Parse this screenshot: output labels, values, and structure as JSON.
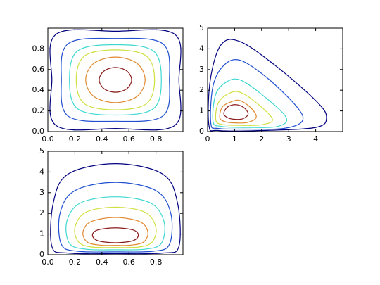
{
  "chart_data": [
    {
      "type": "contour",
      "xlim": [
        0,
        1
      ],
      "ylim": [
        0,
        1
      ],
      "xticks": [
        {
          "value": 0,
          "label": "0.0"
        },
        0.2,
        0.4,
        0.6,
        0.8
      ],
      "yticks": [
        {
          "value": 0,
          "label": "0.0"
        },
        0.2,
        0.4,
        0.6,
        0.8
      ],
      "series": [
        {
          "color": "#00007f",
          "x": [
            0.97,
            0.94,
            0.5,
            0.06,
            0.03,
            0.06,
            0.5,
            0.94
          ],
          "y": [
            0.5,
            0.94,
            0.97,
            0.94,
            0.5,
            0.06,
            0.03,
            0.06
          ]
        },
        {
          "color": "#1f4fd0",
          "x": [
            0.9,
            0.85,
            0.5,
            0.15,
            0.1,
            0.15,
            0.5,
            0.85
          ],
          "y": [
            0.5,
            0.85,
            0.9,
            0.85,
            0.5,
            0.15,
            0.1,
            0.15
          ]
        },
        {
          "color": "#3fd8d0",
          "x": [
            0.84,
            0.78,
            0.5,
            0.22,
            0.16,
            0.22,
            0.5,
            0.78
          ],
          "y": [
            0.5,
            0.78,
            0.84,
            0.78,
            0.5,
            0.22,
            0.16,
            0.22
          ]
        },
        {
          "color": "#d0e040",
          "x": [
            0.79,
            0.73,
            0.5,
            0.27,
            0.21,
            0.27,
            0.5,
            0.73
          ],
          "y": [
            0.5,
            0.73,
            0.79,
            0.73,
            0.5,
            0.27,
            0.21,
            0.27
          ]
        },
        {
          "color": "#e08a30",
          "x": [
            0.72,
            0.66,
            0.5,
            0.34,
            0.28,
            0.34,
            0.5,
            0.66
          ],
          "y": [
            0.5,
            0.66,
            0.72,
            0.66,
            0.5,
            0.34,
            0.28,
            0.34
          ]
        },
        {
          "color": "#8b1a1a",
          "x": [
            0.62,
            0.585,
            0.5,
            0.415,
            0.38,
            0.415,
            0.5,
            0.585
          ],
          "y": [
            0.5,
            0.585,
            0.62,
            0.585,
            0.5,
            0.415,
            0.38,
            0.415
          ]
        }
      ]
    },
    {
      "type": "contour",
      "xlim": [
        0,
        5
      ],
      "ylim": [
        0,
        5
      ],
      "xticks": [
        0,
        1,
        2,
        3,
        4
      ],
      "yticks": [
        0,
        1,
        2,
        3,
        4,
        5
      ],
      "series": [
        {
          "color": "#00007f",
          "x": [
            0.05,
            0.1,
            0.5,
            1.2,
            2.5,
            4.0,
            4.4,
            4.0,
            2.0,
            0.4
          ],
          "y": [
            0.3,
            2.5,
            4.2,
            4.35,
            3.2,
            1.5,
            0.7,
            0.2,
            0.05,
            0.05
          ]
        },
        {
          "color": "#1f4fd0",
          "x": [
            0.12,
            0.2,
            0.6,
            1.2,
            2.2,
            3.3,
            3.5,
            2.8,
            1.5,
            0.4
          ],
          "y": [
            0.4,
            2.2,
            3.2,
            3.45,
            2.6,
            1.2,
            0.5,
            0.15,
            0.12,
            0.15
          ]
        },
        {
          "color": "#3fd8d0",
          "x": [
            0.2,
            0.3,
            0.7,
            1.2,
            2.0,
            2.9,
            2.6,
            1.5,
            0.5
          ],
          "y": [
            0.5,
            1.8,
            2.4,
            2.5,
            1.8,
            0.7,
            0.25,
            0.2,
            0.25
          ]
        },
        {
          "color": "#d0e040",
          "x": [
            0.3,
            0.4,
            0.8,
            1.2,
            1.8,
            2.4,
            2.0,
            1.2,
            0.5
          ],
          "y": [
            0.6,
            1.4,
            1.85,
            1.9,
            1.4,
            0.6,
            0.33,
            0.3,
            0.35
          ]
        },
        {
          "color": "#e08a30",
          "x": [
            0.45,
            0.55,
            0.9,
            1.2,
            1.6,
            1.8,
            1.5,
            1.0,
            0.6
          ],
          "y": [
            0.7,
            1.2,
            1.45,
            1.5,
            1.15,
            0.7,
            0.45,
            0.42,
            0.5
          ]
        },
        {
          "color": "#8b1a1a",
          "x": [
            0.6,
            0.75,
            1.05,
            1.35,
            1.5,
            1.3,
            0.95,
            0.7
          ],
          "y": [
            0.9,
            1.2,
            1.3,
            1.15,
            0.85,
            0.62,
            0.6,
            0.7
          ]
        }
      ]
    },
    {
      "type": "contour",
      "xlim": [
        0,
        1
      ],
      "ylim": [
        0,
        5
      ],
      "xticks": [
        {
          "value": 0,
          "label": "0.0"
        },
        0.2,
        0.4,
        0.6,
        0.8
      ],
      "yticks": [
        0,
        1,
        2,
        3,
        4,
        5
      ],
      "series": [
        {
          "color": "#00007f",
          "x": [
            0.5,
            0.85,
            0.96,
            0.97,
            0.85,
            0.5,
            0.15,
            0.03,
            0.04,
            0.15
          ],
          "y": [
            4.4,
            3.9,
            2.5,
            0.4,
            0.08,
            0.05,
            0.08,
            0.4,
            2.5,
            3.9
          ]
        },
        {
          "color": "#1f4fd0",
          "x": [
            0.5,
            0.8,
            0.91,
            0.9,
            0.78,
            0.5,
            0.22,
            0.1,
            0.09,
            0.2
          ],
          "y": [
            3.5,
            3.1,
            2.0,
            0.5,
            0.17,
            0.14,
            0.17,
            0.5,
            2.0,
            3.1
          ]
        },
        {
          "color": "#3fd8d0",
          "x": [
            0.5,
            0.76,
            0.86,
            0.84,
            0.72,
            0.5,
            0.28,
            0.16,
            0.14,
            0.24
          ],
          "y": [
            2.8,
            2.5,
            1.6,
            0.55,
            0.27,
            0.24,
            0.27,
            0.55,
            1.6,
            2.5
          ]
        },
        {
          "color": "#d0e040",
          "x": [
            0.5,
            0.72,
            0.8,
            0.77,
            0.67,
            0.5,
            0.33,
            0.23,
            0.2,
            0.28
          ],
          "y": [
            2.3,
            2.05,
            1.3,
            0.6,
            0.37,
            0.35,
            0.37,
            0.6,
            1.3,
            2.05
          ]
        },
        {
          "color": "#e08a30",
          "x": [
            0.5,
            0.68,
            0.74,
            0.71,
            0.62,
            0.5,
            0.38,
            0.29,
            0.26,
            0.32
          ],
          "y": [
            1.8,
            1.6,
            1.1,
            0.62,
            0.47,
            0.45,
            0.47,
            0.62,
            1.1,
            1.6
          ]
        },
        {
          "color": "#8b1a1a",
          "x": [
            0.5,
            0.63,
            0.67,
            0.63,
            0.5,
            0.37,
            0.33,
            0.37
          ],
          "y": [
            1.3,
            1.2,
            0.95,
            0.68,
            0.58,
            0.68,
            0.95,
            1.2
          ]
        }
      ]
    }
  ]
}
